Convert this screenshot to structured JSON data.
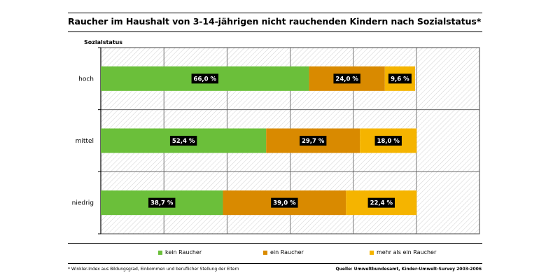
{
  "title": "Raucher im Haushalt von 3-14-jährigen nicht rauchenden Kindern nach Sozialstatus*",
  "chart_data": {
    "type": "bar",
    "orientation": "horizontal",
    "stacked": true,
    "ylabel": "Sozialstatus",
    "categories": [
      "hoch",
      "mittel",
      "niedrig"
    ],
    "series": [
      {
        "name": "kein Raucher",
        "color": "#6bbf3a",
        "values": [
          66.0,
          52.4,
          38.7
        ],
        "labels": [
          "66,0 %",
          "52,4 %",
          "38,7 %"
        ]
      },
      {
        "name": "ein Raucher",
        "color": "#d98a00",
        "values": [
          24.0,
          29.7,
          39.0
        ],
        "labels": [
          "24,0 %",
          "29,7 %",
          "39,0 %"
        ]
      },
      {
        "name": "mehr als ein Raucher",
        "color": "#f5b400",
        "values": [
          9.6,
          18.0,
          22.4
        ],
        "labels": [
          "9,6 %",
          "18,0 %",
          "22,4 %"
        ]
      }
    ],
    "xlim": [
      0,
      120
    ],
    "grid": true,
    "legend_position": "bottom"
  },
  "footnote": "* Winkler-Index aus Bildungsgrad, Einkommen und beruflicher Stellung der Eltern",
  "source": "Quelle: Umweltbundesamt, Kinder-Umwelt-Survey 2003-2006"
}
